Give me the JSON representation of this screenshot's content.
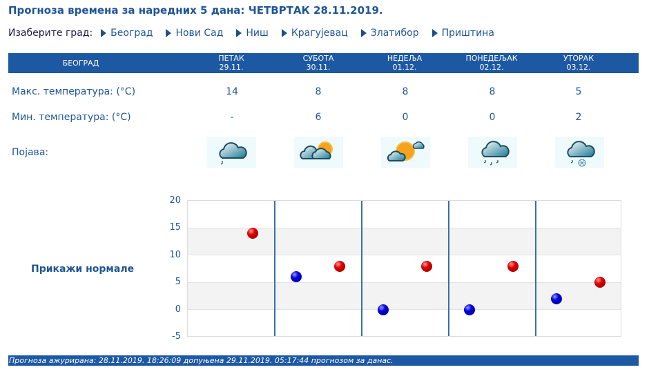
{
  "header": {
    "title": "Прогноза времена за наредних 5 дана: ЧЕТВРТАК  28.11.2019."
  },
  "city_select": {
    "label": "Изаберите град:",
    "cities": [
      "Београд",
      "Нови Сад",
      "Ниш",
      "Крагујевац",
      "Златибор",
      "Приштина"
    ]
  },
  "table": {
    "city": "БЕОГРАД",
    "days": [
      {
        "name": "ПЕТАК",
        "date": "29.11.",
        "max": "14",
        "min": "-",
        "icon": "cloud-light-rain-icon"
      },
      {
        "name": "СУБОТА",
        "date": "30.11.",
        "max": "8",
        "min": "6",
        "icon": "cloud-sun-icon"
      },
      {
        "name": "НЕДЕЉА",
        "date": "01.12.",
        "max": "8",
        "min": "0",
        "icon": "sun-cloud-icon"
      },
      {
        "name": "ПОНЕДЕЉАК",
        "date": "02.12.",
        "max": "8",
        "min": "0",
        "icon": "cloud-rain-icon"
      },
      {
        "name": "УТОРАК",
        "date": "03.12.",
        "max": "5",
        "min": "2",
        "icon": "cloud-rain-snow-icon"
      }
    ],
    "max_label": "Макс. температура: (°C)",
    "min_label": "Мин. температура: (°C)",
    "phenomenon_label": "Појава:"
  },
  "normals_link": "Прикажи нормале",
  "chart_data": {
    "type": "scatter",
    "title": "",
    "xlabel": "",
    "ylabel": "",
    "ylim": [
      -5,
      20
    ],
    "yticks": [
      20,
      15,
      10,
      5,
      0,
      -5
    ],
    "categories": [
      "29.11.",
      "30.11.",
      "01.12.",
      "02.12.",
      "03.12."
    ],
    "series": [
      {
        "name": "Макс. температура",
        "color": "#e00000",
        "values": [
          14,
          8,
          8,
          8,
          5
        ]
      },
      {
        "name": "Мин. температура",
        "color": "#0000e0",
        "values": [
          null,
          6,
          0,
          0,
          2
        ]
      }
    ],
    "grid": true
  },
  "footer": {
    "text": "Прогноза ажурирана:  28.11.2019. 18:26:09 допуњена 29.11.2019. 05:17:44 прогнозом за данас."
  },
  "colors": {
    "accent": "#1d58a3",
    "text": "#1f5597",
    "max_marker": "#e00000",
    "min_marker": "#0000e0"
  }
}
